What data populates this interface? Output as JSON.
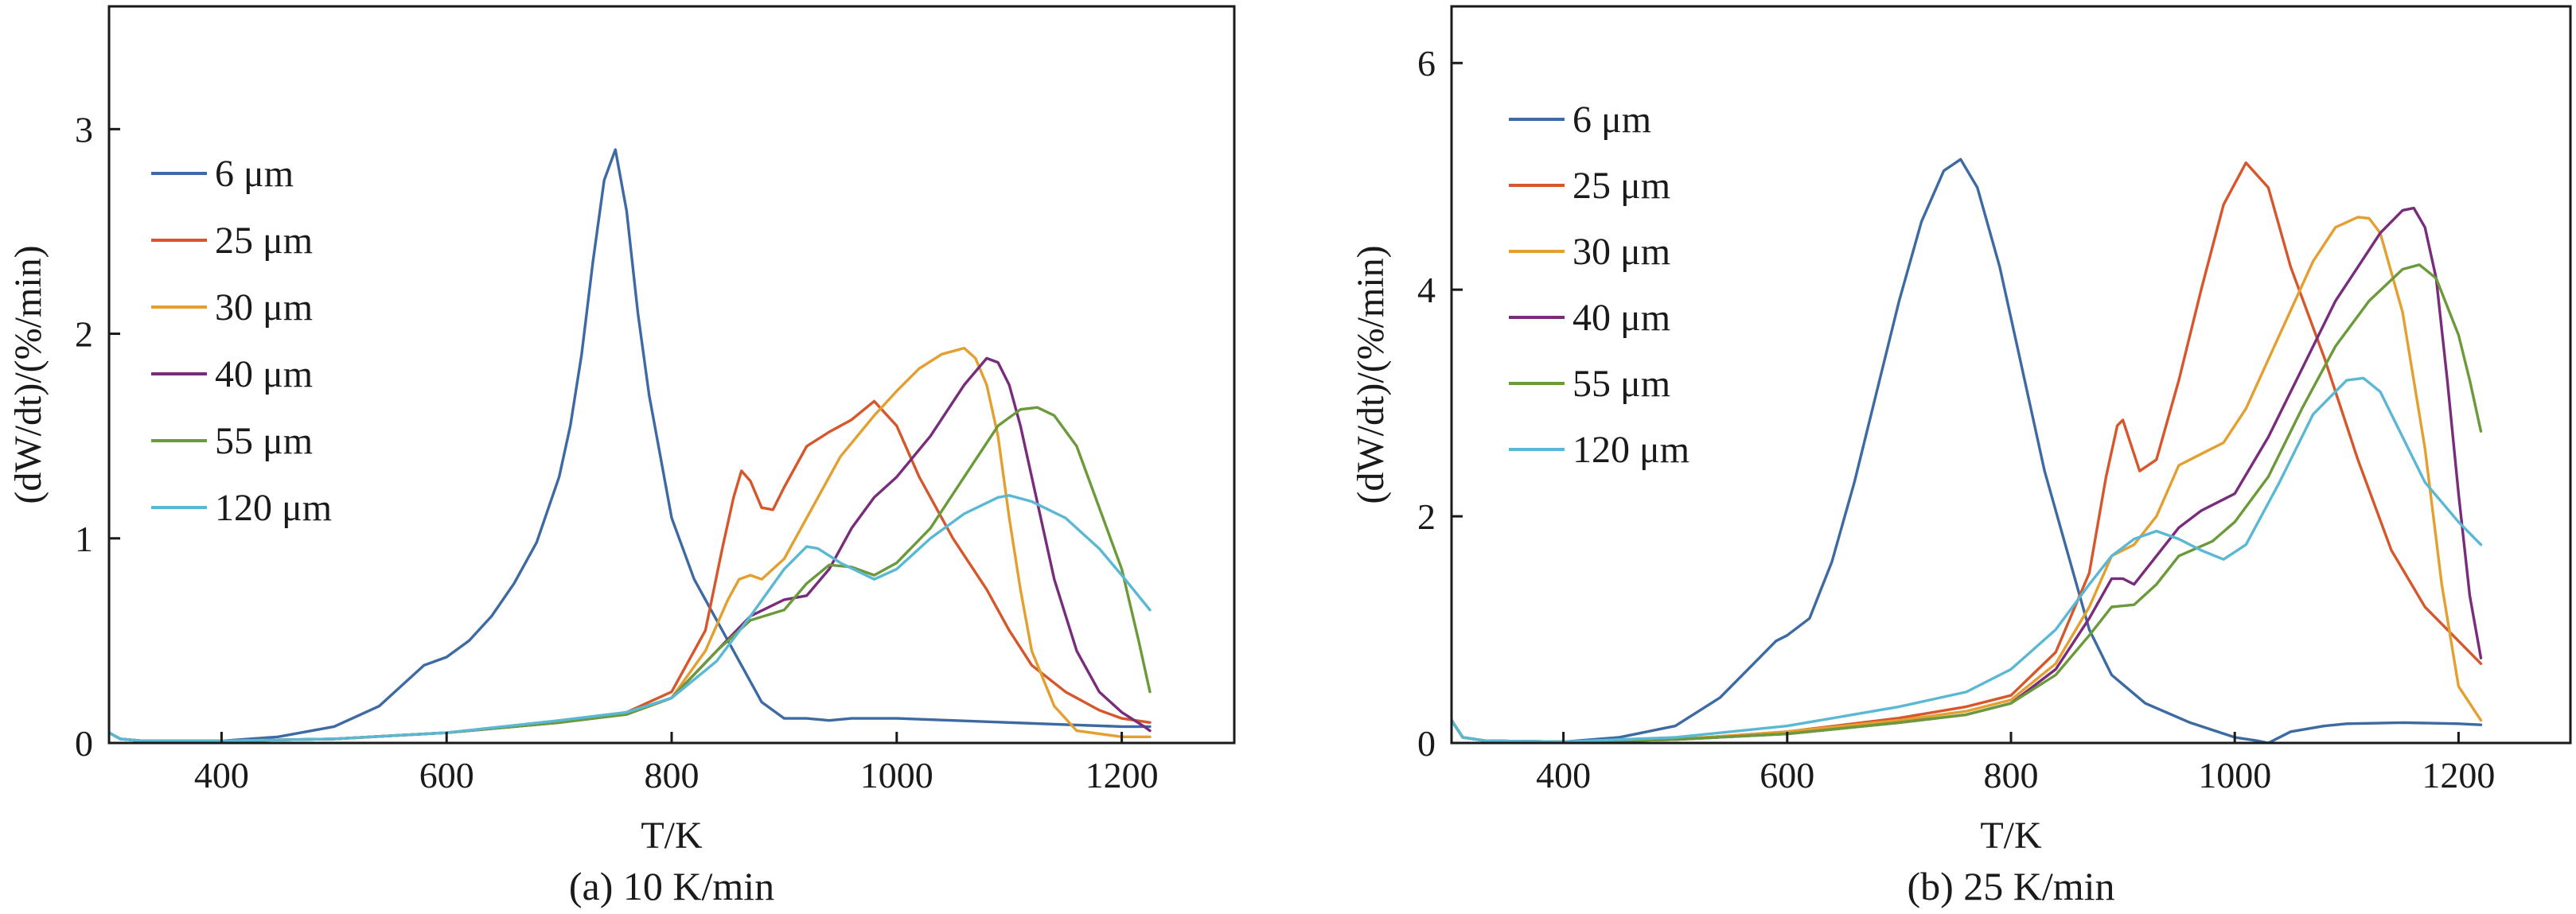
{
  "chart_data": [
    {
      "type": "line",
      "caption": "(a) 10 K/min",
      "xlabel": "T/K",
      "ylabel": "(dW/dt)/(%/min)",
      "xlim": [
        300,
        1300
      ],
      "ylim": [
        0,
        3.6
      ],
      "xticks": [
        400,
        600,
        800,
        1000,
        1200
      ],
      "yticks": [
        0,
        1,
        2,
        3
      ],
      "grid": false,
      "legend_position": "top-left",
      "series": [
        {
          "name": "6 μm",
          "color": "#3d6aa3",
          "x": [
            300,
            310,
            330,
            400,
            450,
            500,
            540,
            560,
            580,
            590,
            600,
            620,
            640,
            660,
            680,
            700,
            710,
            720,
            730,
            740,
            750,
            760,
            770,
            780,
            790,
            800,
            820,
            840,
            860,
            880,
            900,
            920,
            940,
            960,
            1000,
            1050,
            1100,
            1150,
            1200,
            1225
          ],
          "y": [
            0.05,
            0.02,
            0.01,
            0.01,
            0.03,
            0.08,
            0.18,
            0.28,
            0.38,
            0.4,
            0.42,
            0.5,
            0.62,
            0.78,
            0.98,
            1.3,
            1.55,
            1.9,
            2.35,
            2.75,
            2.9,
            2.6,
            2.1,
            1.7,
            1.4,
            1.1,
            0.8,
            0.6,
            0.4,
            0.2,
            0.12,
            0.12,
            0.11,
            0.12,
            0.12,
            0.11,
            0.1,
            0.09,
            0.08,
            0.08
          ]
        },
        {
          "name": "25 μm",
          "color": "#d5572b",
          "x": [
            300,
            310,
            330,
            400,
            500,
            600,
            700,
            760,
            800,
            830,
            845,
            855,
            862,
            870,
            880,
            890,
            900,
            920,
            940,
            960,
            980,
            1000,
            1020,
            1050,
            1080,
            1100,
            1120,
            1150,
            1180,
            1200,
            1225
          ],
          "y": [
            0.05,
            0.02,
            0.01,
            0.01,
            0.02,
            0.05,
            0.1,
            0.15,
            0.25,
            0.55,
            0.95,
            1.2,
            1.33,
            1.28,
            1.15,
            1.14,
            1.25,
            1.45,
            1.52,
            1.58,
            1.67,
            1.55,
            1.3,
            1.0,
            0.75,
            0.55,
            0.38,
            0.25,
            0.16,
            0.12,
            0.1
          ]
        },
        {
          "name": "30 μm",
          "color": "#e3a030",
          "x": [
            300,
            310,
            330,
            400,
            500,
            600,
            700,
            760,
            800,
            830,
            850,
            860,
            870,
            880,
            900,
            920,
            950,
            980,
            1000,
            1020,
            1040,
            1060,
            1070,
            1080,
            1090,
            1100,
            1110,
            1120,
            1140,
            1160,
            1200,
            1225
          ],
          "y": [
            0.05,
            0.02,
            0.01,
            0.01,
            0.02,
            0.05,
            0.1,
            0.14,
            0.22,
            0.45,
            0.7,
            0.8,
            0.82,
            0.8,
            0.9,
            1.1,
            1.4,
            1.6,
            1.72,
            1.83,
            1.9,
            1.93,
            1.88,
            1.75,
            1.5,
            1.1,
            0.75,
            0.45,
            0.18,
            0.06,
            0.03,
            0.03
          ]
        },
        {
          "name": "40 μm",
          "color": "#7a2c7c",
          "x": [
            300,
            310,
            330,
            400,
            500,
            600,
            700,
            760,
            800,
            840,
            870,
            900,
            920,
            940,
            960,
            980,
            1000,
            1030,
            1060,
            1080,
            1090,
            1100,
            1110,
            1120,
            1140,
            1160,
            1180,
            1200,
            1220,
            1225
          ],
          "y": [
            0.05,
            0.02,
            0.01,
            0.01,
            0.02,
            0.05,
            0.1,
            0.14,
            0.22,
            0.45,
            0.62,
            0.7,
            0.72,
            0.85,
            1.05,
            1.2,
            1.3,
            1.5,
            1.75,
            1.88,
            1.86,
            1.75,
            1.55,
            1.3,
            0.8,
            0.45,
            0.25,
            0.15,
            0.08,
            0.06
          ]
        },
        {
          "name": "55 μm",
          "color": "#6b9a3b",
          "x": [
            300,
            310,
            330,
            400,
            500,
            600,
            700,
            760,
            800,
            840,
            870,
            900,
            920,
            940,
            960,
            980,
            1000,
            1030,
            1060,
            1090,
            1110,
            1125,
            1140,
            1160,
            1180,
            1200,
            1215,
            1225
          ],
          "y": [
            0.05,
            0.02,
            0.01,
            0.01,
            0.02,
            0.05,
            0.1,
            0.14,
            0.22,
            0.45,
            0.6,
            0.65,
            0.78,
            0.87,
            0.86,
            0.82,
            0.88,
            1.05,
            1.3,
            1.55,
            1.63,
            1.64,
            1.6,
            1.45,
            1.15,
            0.85,
            0.5,
            0.25
          ]
        },
        {
          "name": "120 μm",
          "color": "#5ab8d4",
          "x": [
            300,
            310,
            330,
            400,
            500,
            600,
            700,
            760,
            800,
            840,
            870,
            900,
            920,
            930,
            950,
            980,
            1000,
            1030,
            1060,
            1090,
            1100,
            1120,
            1150,
            1180,
            1200,
            1225
          ],
          "y": [
            0.05,
            0.02,
            0.01,
            0.01,
            0.02,
            0.05,
            0.11,
            0.15,
            0.22,
            0.4,
            0.62,
            0.85,
            0.96,
            0.95,
            0.88,
            0.8,
            0.85,
            1.0,
            1.12,
            1.2,
            1.21,
            1.18,
            1.1,
            0.95,
            0.82,
            0.65
          ]
        }
      ]
    },
    {
      "type": "line",
      "caption": "(b) 25 K/min",
      "xlabel": "T/K",
      "ylabel": "(dW/dt)/(%/min)",
      "xlim": [
        300,
        1300
      ],
      "ylim": [
        0,
        6.5
      ],
      "xticks": [
        400,
        600,
        800,
        1000,
        1200
      ],
      "yticks": [
        0,
        2,
        4,
        6
      ],
      "grid": false,
      "legend_position": "top-left",
      "series": [
        {
          "name": "6 μm",
          "color": "#3d6aa3",
          "x": [
            300,
            310,
            330,
            400,
            450,
            500,
            540,
            570,
            590,
            600,
            620,
            640,
            660,
            680,
            700,
            720,
            740,
            755,
            770,
            790,
            810,
            830,
            850,
            870,
            890,
            920,
            960,
            1000,
            1020,
            1030,
            1050,
            1080,
            1100,
            1150,
            1200,
            1220
          ],
          "y": [
            0.2,
            0.05,
            0.02,
            0.01,
            0.05,
            0.15,
            0.4,
            0.7,
            0.9,
            0.95,
            1.1,
            1.6,
            2.3,
            3.1,
            3.9,
            4.6,
            5.05,
            5.15,
            4.9,
            4.2,
            3.3,
            2.4,
            1.7,
            1.0,
            0.6,
            0.35,
            0.18,
            0.05,
            0.02,
            0.0,
            0.1,
            0.15,
            0.17,
            0.18,
            0.17,
            0.16
          ]
        },
        {
          "name": "25 μm",
          "color": "#d5572b",
          "x": [
            300,
            310,
            330,
            400,
            500,
            600,
            700,
            760,
            800,
            840,
            870,
            885,
            895,
            900,
            905,
            915,
            930,
            950,
            970,
            990,
            1010,
            1030,
            1050,
            1080,
            1110,
            1140,
            1170,
            1200,
            1220
          ],
          "y": [
            0.2,
            0.05,
            0.02,
            0.01,
            0.03,
            0.1,
            0.22,
            0.32,
            0.42,
            0.8,
            1.5,
            2.35,
            2.8,
            2.85,
            2.7,
            2.4,
            2.5,
            3.2,
            4.0,
            4.75,
            5.12,
            4.9,
            4.2,
            3.4,
            2.5,
            1.7,
            1.2,
            0.9,
            0.7
          ]
        },
        {
          "name": "30 μm",
          "color": "#e3a030",
          "x": [
            300,
            310,
            330,
            400,
            500,
            600,
            700,
            760,
            800,
            840,
            870,
            890,
            910,
            930,
            950,
            970,
            990,
            1010,
            1040,
            1070,
            1090,
            1110,
            1120,
            1130,
            1150,
            1170,
            1185,
            1200,
            1220
          ],
          "y": [
            0.2,
            0.05,
            0.02,
            0.01,
            0.03,
            0.1,
            0.2,
            0.28,
            0.38,
            0.7,
            1.2,
            1.65,
            1.75,
            2.0,
            2.45,
            2.55,
            2.65,
            2.95,
            3.6,
            4.25,
            4.55,
            4.64,
            4.63,
            4.5,
            3.8,
            2.6,
            1.4,
            0.5,
            0.2
          ]
        },
        {
          "name": "40 μm",
          "color": "#7a2c7c",
          "x": [
            300,
            310,
            330,
            400,
            500,
            600,
            700,
            760,
            800,
            840,
            870,
            890,
            900,
            910,
            930,
            950,
            970,
            1000,
            1030,
            1060,
            1090,
            1110,
            1130,
            1150,
            1160,
            1170,
            1180,
            1190,
            1200,
            1210,
            1220
          ],
          "y": [
            0.2,
            0.05,
            0.02,
            0.01,
            0.03,
            0.08,
            0.18,
            0.25,
            0.35,
            0.65,
            1.1,
            1.45,
            1.45,
            1.4,
            1.65,
            1.9,
            2.05,
            2.2,
            2.7,
            3.3,
            3.9,
            4.2,
            4.5,
            4.7,
            4.72,
            4.55,
            4.1,
            3.2,
            2.2,
            1.3,
            0.75
          ]
        },
        {
          "name": "55 μm",
          "color": "#6b9a3b",
          "x": [
            300,
            310,
            330,
            400,
            500,
            600,
            700,
            760,
            800,
            840,
            870,
            890,
            910,
            930,
            950,
            980,
            1000,
            1030,
            1060,
            1090,
            1120,
            1150,
            1165,
            1180,
            1200,
            1210,
            1220
          ],
          "y": [
            0.2,
            0.05,
            0.02,
            0.01,
            0.03,
            0.08,
            0.18,
            0.25,
            0.35,
            0.6,
            0.95,
            1.2,
            1.22,
            1.4,
            1.65,
            1.78,
            1.95,
            2.35,
            2.95,
            3.5,
            3.9,
            4.18,
            4.22,
            4.1,
            3.6,
            3.2,
            2.75
          ]
        },
        {
          "name": "120 μm",
          "color": "#5ab8d4",
          "x": [
            300,
            310,
            330,
            400,
            500,
            600,
            700,
            760,
            800,
            840,
            870,
            890,
            910,
            930,
            950,
            970,
            990,
            1010,
            1040,
            1070,
            1100,
            1115,
            1130,
            1150,
            1170,
            1200,
            1220
          ],
          "y": [
            0.2,
            0.05,
            0.02,
            0.01,
            0.05,
            0.15,
            0.32,
            0.45,
            0.65,
            1.0,
            1.4,
            1.65,
            1.8,
            1.87,
            1.8,
            1.7,
            1.62,
            1.75,
            2.3,
            2.9,
            3.2,
            3.22,
            3.1,
            2.7,
            2.3,
            1.95,
            1.75
          ]
        }
      ]
    }
  ]
}
